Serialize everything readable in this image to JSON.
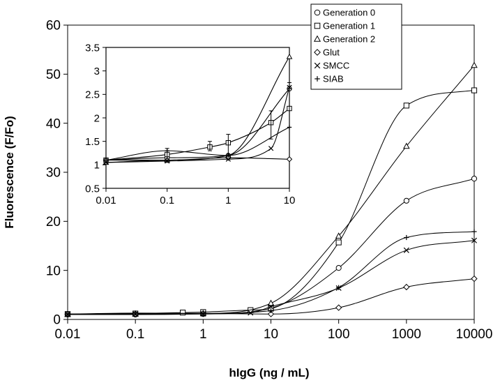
{
  "chart_data": [
    {
      "type": "line",
      "title": "",
      "xlabel": "hIgG (ng / mL)",
      "ylabel": "Fluorescence (F/Fo)",
      "x_scale": "log",
      "xlim": [
        0.01,
        10000
      ],
      "ylim": [
        0,
        60
      ],
      "x_tick_labels": [
        "0.01",
        "0.1",
        "1",
        "10",
        "100",
        "1000",
        "10000"
      ],
      "y_tick_labels": [
        "0",
        "10",
        "20",
        "30",
        "40",
        "50",
        "60"
      ],
      "grid": false,
      "legend_position": "top-right",
      "series": [
        {
          "name": "Generation 0",
          "marker": "circle",
          "x": [
            0.01,
            0.1,
            1,
            10,
            100,
            1000,
            10000
          ],
          "y": [
            1.0,
            1.0,
            1.1,
            2.3,
            10.5,
            24.2,
            28.7
          ]
        },
        {
          "name": "Generation 1",
          "marker": "square",
          "x": [
            0.01,
            0.1,
            0.5,
            1,
            5,
            10,
            100,
            1000,
            10000
          ],
          "y": [
            1.1,
            1.2,
            1.4,
            1.5,
            1.9,
            2.2,
            15.7,
            43.6,
            46.7
          ]
        },
        {
          "name": "Generation 2",
          "marker": "triangle",
          "x": [
            0.01,
            0.1,
            1,
            10,
            100,
            1000,
            10000
          ],
          "y": [
            1.0,
            1.1,
            1.2,
            3.3,
            17.0,
            35.3,
            51.8
          ]
        },
        {
          "name": "Glut",
          "marker": "diamond",
          "x": [
            0.01,
            0.1,
            1,
            10,
            100,
            1000,
            10000
          ],
          "y": [
            1.1,
            1.1,
            1.2,
            1.1,
            2.4,
            6.6,
            8.3
          ]
        },
        {
          "name": "SMCC",
          "marker": "x",
          "x": [
            0.01,
            0.1,
            1,
            5,
            10,
            100,
            1000,
            10000
          ],
          "y": [
            1.05,
            1.1,
            1.15,
            1.35,
            2.6,
            6.4,
            14.1,
            16.1
          ]
        },
        {
          "name": "SIAB",
          "marker": "plus",
          "x": [
            0.01,
            0.1,
            1,
            10,
            100,
            1000,
            10000
          ],
          "y": [
            1.1,
            1.3,
            1.25,
            1.8,
            6.5,
            16.7,
            17.9
          ]
        }
      ]
    },
    {
      "type": "line",
      "title": "",
      "xlabel": "",
      "ylabel": "",
      "x_scale": "log",
      "xlim": [
        0.01,
        10
      ],
      "ylim": [
        0.5,
        3.5
      ],
      "x_tick_labels": [
        "0.01",
        "0.1",
        "1",
        "10"
      ],
      "y_tick_labels": [
        "0.5",
        "1",
        "1.5",
        "2",
        "2.5",
        "3",
        "3.5"
      ],
      "grid": false,
      "series": [
        {
          "name": "Generation 0",
          "marker": "circle",
          "x": [
            0.01,
            0.1,
            1,
            10
          ],
          "y": [
            1.1,
            1.15,
            1.2,
            2.62
          ]
        },
        {
          "name": "Generation 1",
          "marker": "square",
          "x": [
            0.01,
            0.1,
            0.5,
            1,
            5,
            10
          ],
          "y": [
            1.1,
            1.22,
            1.38,
            1.47,
            1.9,
            2.2
          ]
        },
        {
          "name": "Generation 2",
          "marker": "triangle",
          "x": [
            0.01,
            0.1,
            1,
            10
          ],
          "y": [
            1.05,
            1.1,
            1.2,
            3.3
          ]
        },
        {
          "name": "Glut",
          "marker": "diamond",
          "x": [
            0.01,
            0.1,
            1,
            10
          ],
          "y": [
            1.1,
            1.1,
            1.15,
            1.12
          ]
        },
        {
          "name": "SMCC",
          "marker": "x",
          "x": [
            0.01,
            0.1,
            1,
            5,
            10
          ],
          "y": [
            1.05,
            1.08,
            1.12,
            1.35,
            2.65
          ]
        },
        {
          "name": "SIAB",
          "marker": "plus",
          "x": [
            0.01,
            0.1,
            1,
            10
          ],
          "y": [
            1.1,
            1.3,
            1.2,
            1.8
          ]
        }
      ]
    }
  ]
}
